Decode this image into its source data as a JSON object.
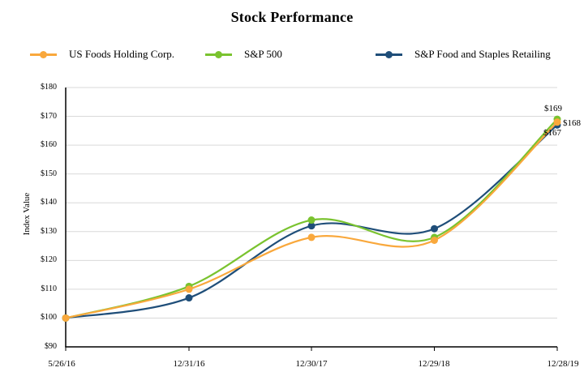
{
  "page": {
    "background": "#FFFFFF"
  },
  "chart_data": {
    "type": "line",
    "title": "Stock Performance",
    "ylabel": "Index Value",
    "xlabel": "",
    "categories": [
      "5/26/16",
      "12/31/16",
      "12/30/17",
      "12/29/18",
      "12/28/19"
    ],
    "series": [
      {
        "name": "US Foods Holding Corp.",
        "color": "#F9A83C",
        "values": [
          100,
          110,
          128,
          127,
          168
        ],
        "end_label": "$168"
      },
      {
        "name": "S&P 500",
        "color": "#7AC32F",
        "values": [
          100,
          111,
          134,
          128,
          169
        ],
        "end_label": "$169"
      },
      {
        "name": "S&P Food and Staples Retailing",
        "color": "#1F4E79",
        "values": [
          100,
          107,
          132,
          131,
          167
        ],
        "end_label": "$167"
      }
    ],
    "y_ticks": [
      "$180",
      "$170",
      "$160",
      "$150",
      "$140",
      "$130",
      "$120",
      "$110",
      "$100",
      "$90"
    ],
    "ylim": [
      90,
      180
    ],
    "grid": "horizontal",
    "legend_position": "top",
    "line_style": "smooth-with-circle-markers",
    "colors": {
      "grid": "#D9D9D9",
      "axis": "#000000",
      "text": "#000000"
    }
  }
}
